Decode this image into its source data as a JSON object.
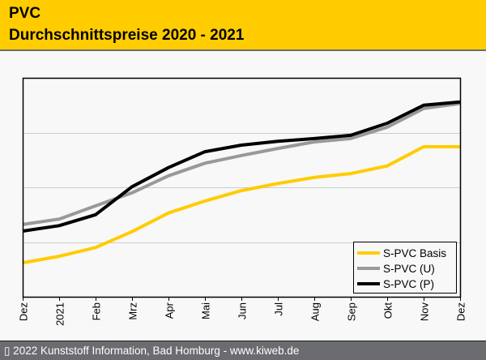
{
  "header": {
    "title_line1": "PVC",
    "title_line2": "Durchschnittspreise 2020 - 2021"
  },
  "footer": {
    "copyright": "▯ 2022 Kunststoff Information, Bad Homburg - www.kiweb.de"
  },
  "colors": {
    "header_bg": "#ffcc00",
    "footer_bg": "#6b6c70",
    "basis": "#ffcc00",
    "u": "#999999",
    "p": "#000000"
  },
  "chart_data": {
    "type": "line",
    "title": "PVC Durchschnittspreise 2020 - 2021",
    "xlabel": "",
    "ylabel": "",
    "y_tick_labels_shown": false,
    "y_units": "relative (gridline bands, unlabeled)",
    "ylim": [
      0,
      4
    ],
    "yticks": [
      1,
      2,
      3
    ],
    "grid": true,
    "legend_position": "bottom-right",
    "categories": [
      "Dez",
      "2021",
      "Feb",
      "Mrz",
      "Apr",
      "Mai",
      "Jun",
      "Jul",
      "Aug",
      "Sep",
      "Okt",
      "Nov",
      "Dez"
    ],
    "series": [
      {
        "name": "S-PVC Basis",
        "color": "#ffcc00",
        "values": [
          0.62,
          0.74,
          0.9,
          1.19,
          1.53,
          1.75,
          1.94,
          2.07,
          2.18,
          2.25,
          2.39,
          2.74,
          2.74
        ]
      },
      {
        "name": "S-PVC (U)",
        "color": "#999999",
        "values": [
          1.32,
          1.42,
          1.66,
          1.9,
          2.21,
          2.44,
          2.58,
          2.71,
          2.83,
          2.89,
          3.1,
          3.44,
          3.53
        ]
      },
      {
        "name": "S-PVC (P)",
        "color": "#000000",
        "values": [
          1.2,
          1.3,
          1.5,
          2.01,
          2.36,
          2.65,
          2.77,
          2.84,
          2.89,
          2.95,
          3.17,
          3.5,
          3.56
        ]
      }
    ]
  }
}
